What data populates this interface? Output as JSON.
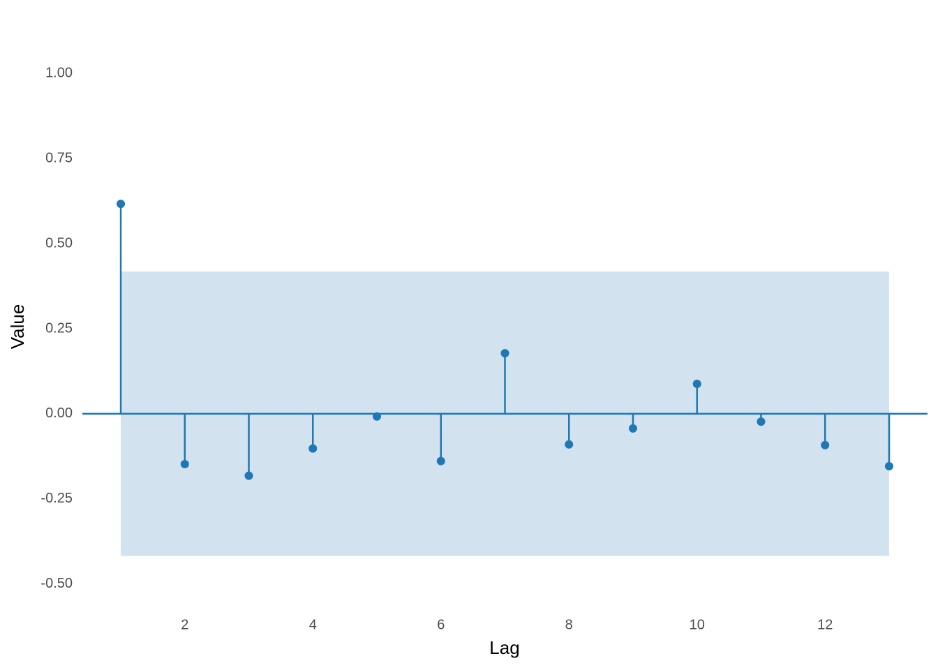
{
  "chart_data": {
    "type": "stem",
    "x_label": "Lag",
    "y_label": "Value",
    "x": [
      1,
      2,
      3,
      4,
      5,
      6,
      7,
      8,
      9,
      10,
      11,
      12,
      13
    ],
    "values": [
      0.617,
      -0.148,
      -0.182,
      -0.102,
      -0.008,
      -0.139,
      0.178,
      -0.09,
      -0.043,
      0.088,
      -0.023,
      -0.092,
      -0.154
    ],
    "color": "#1f77b4",
    "confidence_band": [
      -0.418,
      0.418
    ],
    "band_color": "#d2e3ef",
    "xlim": [
      0.4,
      13.6
    ],
    "xticks": [
      2,
      4,
      6,
      8,
      10,
      12
    ],
    "ylim": [
      -0.55,
      1.05
    ],
    "yticks": [
      {
        "value": -0.5,
        "label": "-0.50"
      },
      {
        "value": -0.25,
        "label": "-0.25"
      },
      {
        "value": 0,
        "label": "0.00"
      },
      {
        "value": 0.25,
        "label": "0.25"
      },
      {
        "value": 0.5,
        "label": "0.50"
      },
      {
        "value": 0.75,
        "label": "0.75"
      },
      {
        "value": 1,
        "label": "1.00"
      }
    ],
    "grid": false
  }
}
